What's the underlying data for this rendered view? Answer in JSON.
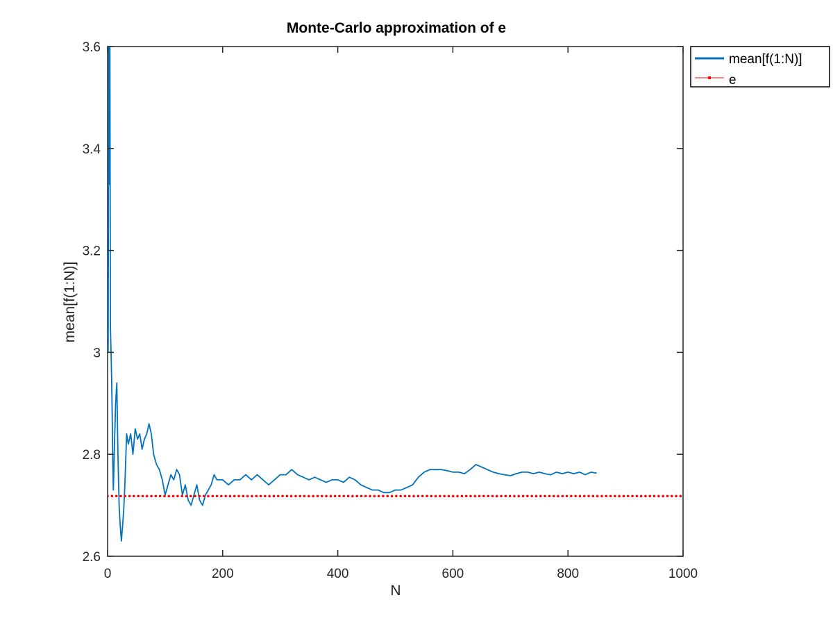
{
  "chart_data": {
    "type": "line",
    "title": "Monte-Carlo approximation of e",
    "xlabel": "N",
    "ylabel": "mean[f(1:N)]",
    "xlim": [
      0,
      1000
    ],
    "ylim": [
      2.6,
      3.6
    ],
    "xticks": [
      "0",
      "200",
      "400",
      "600",
      "800",
      "1000"
    ],
    "yticks": [
      "2.6",
      "2.8",
      "3",
      "3.2",
      "3.4",
      "3.6"
    ],
    "grid": false,
    "legend_position": "outside-top-right",
    "series": [
      {
        "name": "mean[f(1:N)]",
        "color": "#0072BD",
        "style": "solid",
        "x": [
          1,
          2,
          3,
          4,
          5,
          6,
          7,
          8,
          9,
          10,
          12,
          14,
          16,
          18,
          20,
          22,
          24,
          26,
          28,
          30,
          33,
          36,
          40,
          44,
          48,
          52,
          56,
          60,
          64,
          68,
          72,
          76,
          80,
          85,
          90,
          95,
          100,
          105,
          110,
          115,
          120,
          125,
          130,
          135,
          140,
          145,
          150,
          155,
          160,
          165,
          170,
          175,
          180,
          185,
          190,
          200,
          210,
          220,
          230,
          240,
          250,
          260,
          270,
          280,
          290,
          300,
          310,
          320,
          330,
          340,
          350,
          360,
          370,
          380,
          390,
          400,
          410,
          420,
          430,
          440,
          450,
          460,
          470,
          480,
          490,
          500,
          510,
          520,
          530,
          540,
          550,
          560,
          570,
          580,
          590,
          600,
          610,
          620,
          630,
          640,
          650,
          660,
          670,
          680,
          690,
          700,
          710,
          720,
          730,
          740,
          750,
          760,
          770,
          780,
          790,
          800,
          810,
          820,
          830,
          840,
          850
        ],
        "y": [
          3.0,
          3.6,
          3.33,
          3.6,
          3.05,
          3.0,
          2.95,
          2.88,
          2.78,
          2.73,
          2.82,
          2.9,
          2.94,
          2.8,
          2.7,
          2.66,
          2.63,
          2.66,
          2.69,
          2.74,
          2.84,
          2.82,
          2.84,
          2.8,
          2.85,
          2.83,
          2.84,
          2.81,
          2.83,
          2.84,
          2.86,
          2.84,
          2.8,
          2.78,
          2.77,
          2.75,
          2.72,
          2.74,
          2.76,
          2.75,
          2.77,
          2.76,
          2.72,
          2.74,
          2.71,
          2.7,
          2.72,
          2.74,
          2.71,
          2.7,
          2.72,
          2.73,
          2.74,
          2.76,
          2.75,
          2.75,
          2.74,
          2.75,
          2.75,
          2.76,
          2.75,
          2.76,
          2.75,
          2.74,
          2.75,
          2.76,
          2.76,
          2.77,
          2.76,
          2.755,
          2.75,
          2.755,
          2.75,
          2.745,
          2.75,
          2.75,
          2.745,
          2.755,
          2.75,
          2.74,
          2.735,
          2.73,
          2.73,
          2.725,
          2.725,
          2.73,
          2.73,
          2.735,
          2.74,
          2.755,
          2.765,
          2.77,
          2.77,
          2.77,
          2.768,
          2.765,
          2.765,
          2.762,
          2.77,
          2.78,
          2.775,
          2.77,
          2.765,
          2.762,
          2.76,
          2.758,
          2.762,
          2.765,
          2.765,
          2.762,
          2.765,
          2.762,
          2.76,
          2.765,
          2.762,
          2.765,
          2.762,
          2.765,
          2.76,
          2.765,
          2.763
        ]
      },
      {
        "name": "e",
        "color": "#FF0000",
        "style": "dotted",
        "x": [
          0,
          1000
        ],
        "y": [
          2.718,
          2.718
        ]
      }
    ]
  }
}
